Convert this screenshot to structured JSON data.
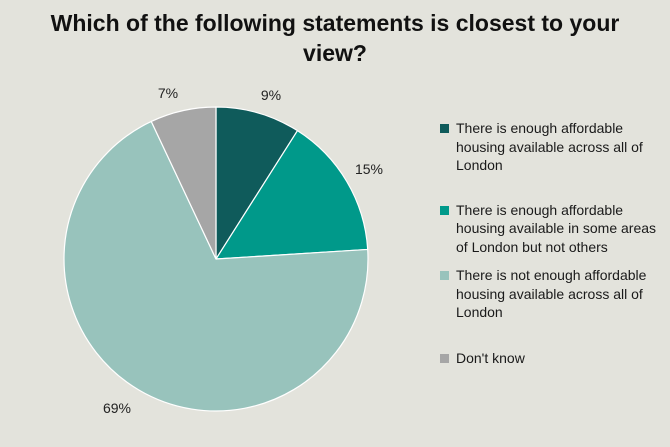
{
  "chart_data": {
    "type": "pie",
    "title": "Which of the following statements is closest to your view?",
    "slices": [
      {
        "label": "There is enough affordable housing available across all of London",
        "value": 9,
        "display": "9%",
        "color": "#0f5b5b"
      },
      {
        "label": "There is enough affordable housing available in some areas of London but not others",
        "value": 15,
        "display": "15%",
        "color": "#00998a"
      },
      {
        "label": "There is not enough affordable housing available across all of London",
        "value": 69,
        "display": "69%",
        "color": "#98c3bc"
      },
      {
        "label": "Don't know",
        "value": 7,
        "display": "7%",
        "color": "#a6a6a6"
      }
    ],
    "legend_position": "right",
    "start_angle": "12 o'clock",
    "direction": "clockwise"
  }
}
